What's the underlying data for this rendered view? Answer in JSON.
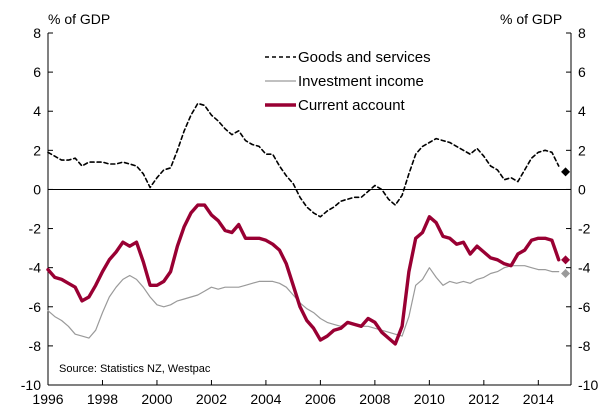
{
  "chart_data": {
    "type": "line",
    "title": "",
    "y_unit_left": "% of GDP",
    "y_unit_right": "% of GDP",
    "xlabel": "",
    "ylabel": "",
    "xlim": [
      1996,
      2015.2
    ],
    "ylim": [
      -10,
      8
    ],
    "x_ticks": [
      1996,
      1998,
      2000,
      2002,
      2004,
      2006,
      2008,
      2010,
      2012,
      2014
    ],
    "y_ticks": [
      -10,
      -8,
      -6,
      -4,
      -2,
      0,
      2,
      4,
      6,
      8
    ],
    "grid": false,
    "legend_position": "top-center",
    "source": "Source: Statistics NZ, Westpac",
    "colors": {
      "goods_and_services": "#000000",
      "investment_income": "#9a9a9a",
      "current_account": "#990033"
    },
    "series": [
      {
        "name": "Goods and services",
        "key": "goods_and_services",
        "style": "dashed",
        "x": [
          1996.0,
          1996.25,
          1996.5,
          1996.75,
          1997.0,
          1997.25,
          1997.5,
          1997.75,
          1998.0,
          1998.25,
          1998.5,
          1998.75,
          1999.0,
          1999.25,
          1999.5,
          1999.75,
          2000.0,
          2000.25,
          2000.5,
          2000.75,
          2001.0,
          2001.25,
          2001.5,
          2001.75,
          2002.0,
          2002.25,
          2002.5,
          2002.75,
          2003.0,
          2003.25,
          2003.5,
          2003.75,
          2004.0,
          2004.25,
          2004.5,
          2004.75,
          2005.0,
          2005.25,
          2005.5,
          2005.75,
          2006.0,
          2006.25,
          2006.5,
          2006.75,
          2007.0,
          2007.25,
          2007.5,
          2007.75,
          2008.0,
          2008.25,
          2008.5,
          2008.75,
          2009.0,
          2009.25,
          2009.5,
          2009.75,
          2010.0,
          2010.25,
          2010.5,
          2010.75,
          2011.0,
          2011.25,
          2011.5,
          2011.75,
          2012.0,
          2012.25,
          2012.5,
          2012.75,
          2013.0,
          2013.25,
          2013.5,
          2013.75,
          2014.0,
          2014.25,
          2014.5,
          2014.75
        ],
        "values": [
          1.9,
          1.7,
          1.5,
          1.5,
          1.6,
          1.2,
          1.4,
          1.4,
          1.4,
          1.3,
          1.3,
          1.4,
          1.3,
          1.2,
          0.8,
          0.1,
          0.6,
          1.0,
          1.1,
          2.0,
          3.0,
          3.8,
          4.4,
          4.3,
          3.8,
          3.5,
          3.1,
          2.8,
          3.0,
          2.5,
          2.3,
          2.2,
          1.8,
          1.8,
          1.2,
          0.7,
          0.3,
          -0.4,
          -0.9,
          -1.2,
          -1.4,
          -1.1,
          -0.9,
          -0.6,
          -0.5,
          -0.4,
          -0.4,
          -0.1,
          0.2,
          0.0,
          -0.5,
          -0.8,
          -0.3,
          0.8,
          1.8,
          2.2,
          2.4,
          2.6,
          2.5,
          2.4,
          2.2,
          2.0,
          1.8,
          2.1,
          1.7,
          1.2,
          1.0,
          0.5,
          0.6,
          0.4,
          1.0,
          1.6,
          1.9,
          2.0,
          1.9,
          1.2
        ]
      },
      {
        "name": "Investment income",
        "key": "investment_income",
        "style": "solid",
        "x": [
          1996.0,
          1996.25,
          1996.5,
          1996.75,
          1997.0,
          1997.25,
          1997.5,
          1997.75,
          1998.0,
          1998.25,
          1998.5,
          1998.75,
          1999.0,
          1999.25,
          1999.5,
          1999.75,
          2000.0,
          2000.25,
          2000.5,
          2000.75,
          2001.0,
          2001.25,
          2001.5,
          2001.75,
          2002.0,
          2002.25,
          2002.5,
          2002.75,
          2003.0,
          2003.25,
          2003.5,
          2003.75,
          2004.0,
          2004.25,
          2004.5,
          2004.75,
          2005.0,
          2005.25,
          2005.5,
          2005.75,
          2006.0,
          2006.25,
          2006.5,
          2006.75,
          2007.0,
          2007.25,
          2007.5,
          2007.75,
          2008.0,
          2008.25,
          2008.5,
          2008.75,
          2009.0,
          2009.25,
          2009.5,
          2009.75,
          2010.0,
          2010.25,
          2010.5,
          2010.75,
          2011.0,
          2011.25,
          2011.5,
          2011.75,
          2012.0,
          2012.25,
          2012.5,
          2012.75,
          2013.0,
          2013.25,
          2013.5,
          2013.75,
          2014.0,
          2014.25,
          2014.5,
          2014.75
        ],
        "values": [
          -6.2,
          -6.5,
          -6.7,
          -7.0,
          -7.4,
          -7.5,
          -7.6,
          -7.2,
          -6.3,
          -5.5,
          -5.0,
          -4.6,
          -4.4,
          -4.6,
          -5.0,
          -5.5,
          -5.9,
          -6.0,
          -5.9,
          -5.7,
          -5.6,
          -5.5,
          -5.4,
          -5.2,
          -5.0,
          -5.1,
          -5.0,
          -5.0,
          -5.0,
          -4.9,
          -4.8,
          -4.7,
          -4.7,
          -4.7,
          -4.8,
          -5.0,
          -5.4,
          -5.8,
          -6.1,
          -6.3,
          -6.6,
          -6.8,
          -6.9,
          -7.0,
          -6.8,
          -6.9,
          -7.0,
          -7.0,
          -7.1,
          -7.2,
          -7.3,
          -7.4,
          -7.5,
          -6.5,
          -4.9,
          -4.6,
          -4.0,
          -4.5,
          -4.9,
          -4.7,
          -4.8,
          -4.7,
          -4.8,
          -4.6,
          -4.5,
          -4.3,
          -4.2,
          -4.0,
          -3.9,
          -3.9,
          -3.9,
          -4.0,
          -4.1,
          -4.1,
          -4.2,
          -4.2
        ]
      },
      {
        "name": "Current account",
        "key": "current_account",
        "style": "solid-thick",
        "x": [
          1996.0,
          1996.25,
          1996.5,
          1996.75,
          1997.0,
          1997.25,
          1997.5,
          1997.75,
          1998.0,
          1998.25,
          1998.5,
          1998.75,
          1999.0,
          1999.25,
          1999.5,
          1999.75,
          2000.0,
          2000.25,
          2000.5,
          2000.75,
          2001.0,
          2001.25,
          2001.5,
          2001.75,
          2002.0,
          2002.25,
          2002.5,
          2002.75,
          2003.0,
          2003.25,
          2003.5,
          2003.75,
          2004.0,
          2004.25,
          2004.5,
          2004.75,
          2005.0,
          2005.25,
          2005.5,
          2005.75,
          2006.0,
          2006.25,
          2006.5,
          2006.75,
          2007.0,
          2007.25,
          2007.5,
          2007.75,
          2008.0,
          2008.25,
          2008.5,
          2008.75,
          2009.0,
          2009.25,
          2009.5,
          2009.75,
          2010.0,
          2010.25,
          2010.5,
          2010.75,
          2011.0,
          2011.25,
          2011.5,
          2011.75,
          2012.0,
          2012.25,
          2012.5,
          2012.75,
          2013.0,
          2013.25,
          2013.5,
          2013.75,
          2014.0,
          2014.25,
          2014.5,
          2014.75
        ],
        "values": [
          -4.1,
          -4.5,
          -4.6,
          -4.8,
          -5.0,
          -5.7,
          -5.5,
          -4.9,
          -4.2,
          -3.6,
          -3.2,
          -2.7,
          -2.9,
          -2.7,
          -3.7,
          -4.9,
          -4.9,
          -4.7,
          -4.2,
          -2.9,
          -1.9,
          -1.2,
          -0.8,
          -0.8,
          -1.3,
          -1.6,
          -2.1,
          -2.2,
          -1.8,
          -2.5,
          -2.5,
          -2.5,
          -2.6,
          -2.8,
          -3.1,
          -3.8,
          -4.9,
          -6.0,
          -6.7,
          -7.1,
          -7.7,
          -7.5,
          -7.2,
          -7.1,
          -6.8,
          -6.9,
          -7.0,
          -6.6,
          -6.8,
          -7.3,
          -7.6,
          -7.9,
          -7.0,
          -4.2,
          -2.5,
          -2.2,
          -1.4,
          -1.7,
          -2.4,
          -2.5,
          -2.8,
          -2.7,
          -3.3,
          -2.9,
          -3.2,
          -3.5,
          -3.6,
          -3.8,
          -3.9,
          -3.3,
          -3.1,
          -2.6,
          -2.5,
          -2.5,
          -2.6,
          -3.6
        ]
      }
    ],
    "latest_markers": [
      {
        "series_key": "goods_and_services",
        "x": 2015.0,
        "value": 0.9,
        "shape": "diamond",
        "color": "#000000"
      },
      {
        "series_key": "investment_income",
        "x": 2015.0,
        "value": -4.3,
        "shape": "diamond",
        "color": "#9a9a9a"
      },
      {
        "series_key": "current_account",
        "x": 2015.0,
        "value": -3.6,
        "shape": "diamond",
        "color": "#990033"
      }
    ]
  }
}
